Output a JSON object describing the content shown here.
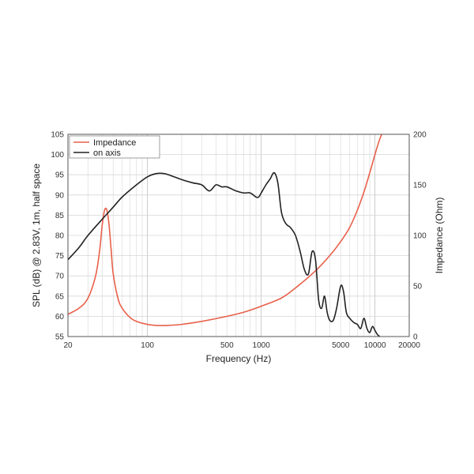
{
  "chart_data": {
    "type": "line",
    "xlabel": "Frequency (Hz)",
    "ylabel_left": "SPL (dB) @ 2.83V, 1m, half space",
    "ylabel_right": "Impedance (Ohm)",
    "x_scale": "log",
    "xlim": [
      20,
      20000
    ],
    "ylim_left": [
      55,
      105
    ],
    "ylim_right": [
      0,
      200
    ],
    "x_ticks": [
      20,
      100,
      500,
      1000,
      5000,
      10000,
      20000
    ],
    "x_tick_labels": [
      "20",
      "100",
      "500",
      "1000",
      "5000",
      "10000",
      "20000"
    ],
    "y_left_ticks": [
      55,
      60,
      65,
      70,
      75,
      80,
      85,
      90,
      95,
      100,
      105
    ],
    "y_left_tick_labels": [
      "55",
      "60",
      "65",
      "70",
      "75",
      "80",
      "85",
      "90",
      "95",
      "100",
      "105"
    ],
    "y_right_ticks": [
      0,
      50,
      100,
      150,
      200
    ],
    "y_right_tick_labels": [
      "0",
      "50",
      "100",
      "150",
      "200"
    ],
    "grid": true,
    "legend_position": "top-left",
    "series": [
      {
        "name": "Impedance",
        "color": "#e8604a",
        "axis": "right",
        "x": [
          20,
          25,
          30,
          35,
          38,
          40,
          42,
          44,
          46,
          48,
          50,
          55,
          60,
          70,
          80,
          100,
          120,
          150,
          200,
          300,
          500,
          700,
          1000,
          1500,
          2000,
          3000,
          4000,
          5000,
          6000,
          7000,
          8000,
          9000,
          10000,
          11000,
          12000
        ],
        "values": [
          22,
          28,
          38,
          60,
          85,
          110,
          125,
          125,
          110,
          85,
          62,
          38,
          28,
          19,
          15,
          12,
          11,
          11,
          12,
          15,
          20,
          24,
          30,
          38,
          48,
          65,
          80,
          94,
          108,
          125,
          143,
          162,
          180,
          195,
          205
        ]
      },
      {
        "name": "on axis",
        "color": "#222222",
        "axis": "left",
        "x": [
          20,
          25,
          30,
          40,
          50,
          60,
          80,
          100,
          120,
          140,
          160,
          200,
          250,
          300,
          350,
          400,
          450,
          500,
          600,
          700,
          800,
          900,
          950,
          1000,
          1100,
          1200,
          1300,
          1400,
          1500,
          1600,
          1700,
          1800,
          2000,
          2200,
          2400,
          2600,
          2800,
          3000,
          3200,
          3400,
          3600,
          3800,
          4000,
          4300,
          4600,
          5000,
          5300,
          5600,
          6000,
          6500,
          7000,
          7500,
          8000,
          8500,
          9000,
          9500,
          10000,
          10500,
          11000
        ],
        "values": [
          74,
          77,
          80,
          84,
          87,
          89.5,
          92.5,
          94.5,
          95.3,
          95.3,
          94.8,
          93.8,
          93,
          92.5,
          91,
          92.5,
          92,
          92,
          91,
          90.5,
          90.5,
          89.5,
          89.5,
          90.5,
          92.5,
          94,
          95.5,
          93,
          86,
          83.5,
          82.5,
          82,
          80,
          76,
          71.5,
          70.5,
          76,
          74,
          64,
          62,
          65,
          61,
          59,
          59,
          62,
          67.5,
          66,
          61,
          59.5,
          58.5,
          58,
          57,
          59.5,
          57,
          56,
          57.5,
          56.5,
          55.5,
          55
        ]
      }
    ]
  }
}
